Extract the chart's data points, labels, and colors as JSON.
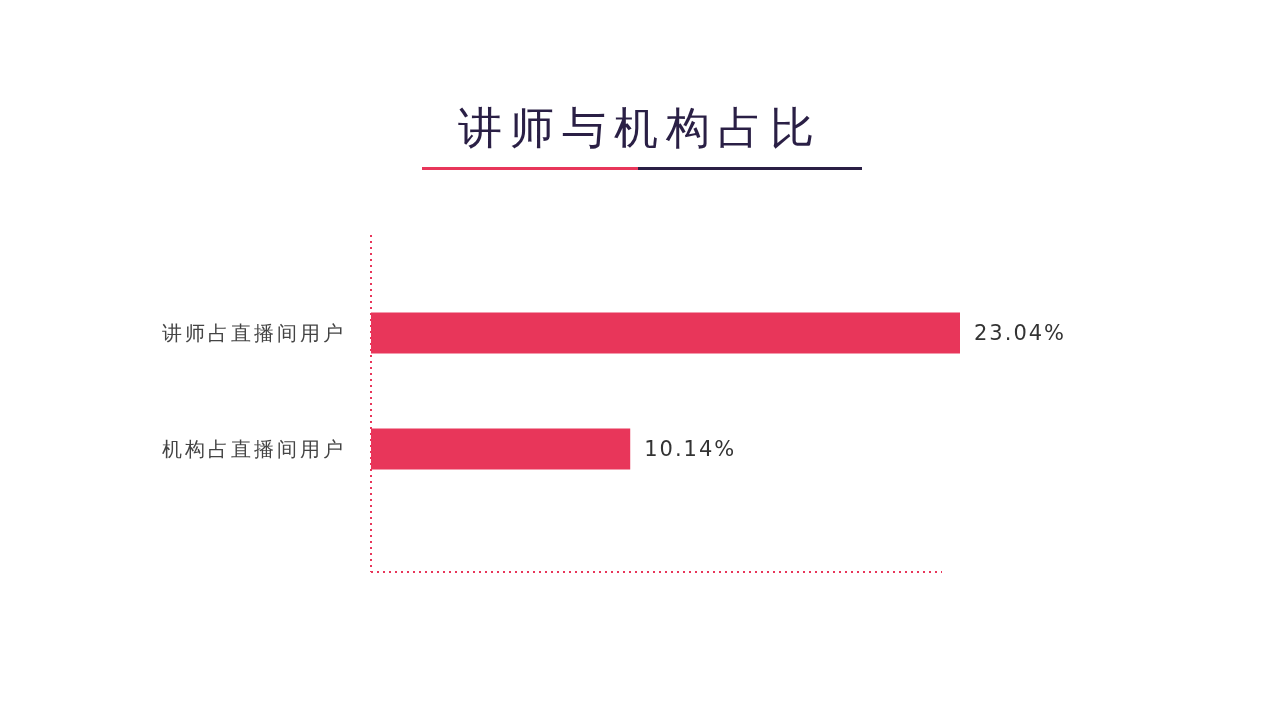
{
  "chart_data": {
    "type": "bar",
    "orientation": "horizontal",
    "title": "讲师与机构占比",
    "categories": [
      "讲师占直播间用户",
      "机构占直播间用户"
    ],
    "values": [
      23.04,
      10.14
    ],
    "value_labels": [
      "23.04%",
      "10.14%"
    ],
    "color": "#e8365a",
    "tick_labels": "y"
  }
}
